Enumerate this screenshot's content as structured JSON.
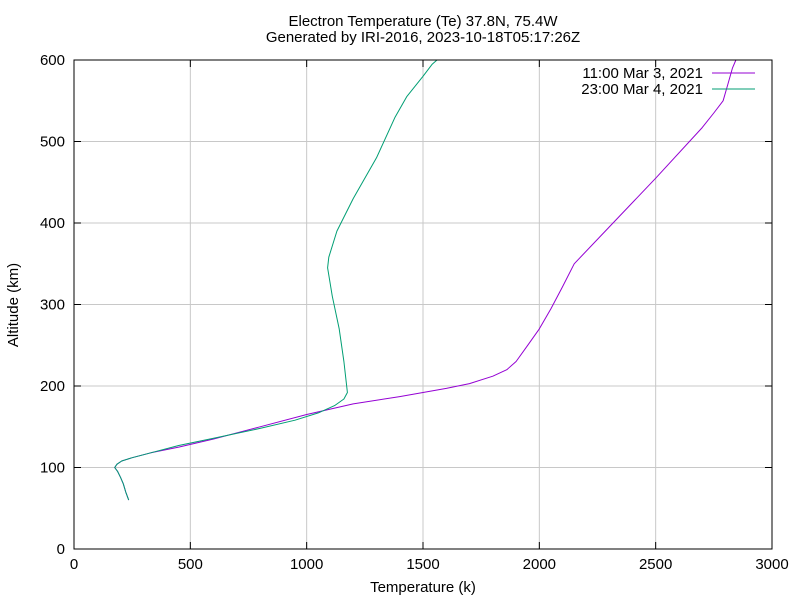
{
  "chart_data": {
    "type": "line",
    "title": "Electron Temperature (Te) 37.8N, 75.4W",
    "subtitle": "Generated by IRI-2016, 2023-10-18T05:17:26Z",
    "xlabel": "Temperature (k)",
    "ylabel": "Altitude (km)",
    "xlim": [
      0,
      3000
    ],
    "ylim": [
      0,
      600
    ],
    "x_ticks": [
      0,
      500,
      1000,
      1500,
      2000,
      2500,
      3000
    ],
    "y_ticks": [
      0,
      100,
      200,
      300,
      400,
      500,
      600
    ],
    "grid": true,
    "legend_position": "top-right",
    "series": [
      {
        "name": "11:00 Mar 3, 2021",
        "color": "#9400d3",
        "points": [
          [
            235,
            60
          ],
          [
            222,
            70
          ],
          [
            212,
            80
          ],
          [
            200,
            88
          ],
          [
            188,
            95
          ],
          [
            175,
            100
          ],
          [
            185,
            104
          ],
          [
            205,
            108
          ],
          [
            250,
            112
          ],
          [
            330,
            118
          ],
          [
            450,
            125
          ],
          [
            600,
            135
          ],
          [
            800,
            150
          ],
          [
            1000,
            165
          ],
          [
            1200,
            178
          ],
          [
            1400,
            187
          ],
          [
            1600,
            197
          ],
          [
            1700,
            203
          ],
          [
            1800,
            212
          ],
          [
            1860,
            220
          ],
          [
            1900,
            230
          ],
          [
            1950,
            250
          ],
          [
            2000,
            270
          ],
          [
            2050,
            295
          ],
          [
            2100,
            322
          ],
          [
            2150,
            350
          ],
          [
            2300,
            395
          ],
          [
            2500,
            455
          ],
          [
            2700,
            517
          ],
          [
            2750,
            535
          ],
          [
            2790,
            550
          ],
          [
            2810,
            570
          ],
          [
            2830,
            590
          ],
          [
            2845,
            600
          ]
        ]
      },
      {
        "name": "23:00 Mar 4, 2021",
        "color": "#009e73",
        "points": [
          [
            235,
            60
          ],
          [
            222,
            70
          ],
          [
            212,
            80
          ],
          [
            200,
            88
          ],
          [
            188,
            95
          ],
          [
            175,
            100
          ],
          [
            185,
            104
          ],
          [
            205,
            108
          ],
          [
            250,
            112
          ],
          [
            330,
            118
          ],
          [
            450,
            127
          ],
          [
            600,
            136
          ],
          [
            800,
            148
          ],
          [
            950,
            158
          ],
          [
            1050,
            167
          ],
          [
            1120,
            176
          ],
          [
            1160,
            184
          ],
          [
            1175,
            192
          ],
          [
            1160,
            230
          ],
          [
            1140,
            270
          ],
          [
            1110,
            310
          ],
          [
            1090,
            345
          ],
          [
            1095,
            358
          ],
          [
            1130,
            390
          ],
          [
            1200,
            430
          ],
          [
            1300,
            480
          ],
          [
            1380,
            530
          ],
          [
            1430,
            555
          ],
          [
            1500,
            580
          ],
          [
            1540,
            595
          ],
          [
            1560,
            600
          ]
        ]
      }
    ]
  }
}
